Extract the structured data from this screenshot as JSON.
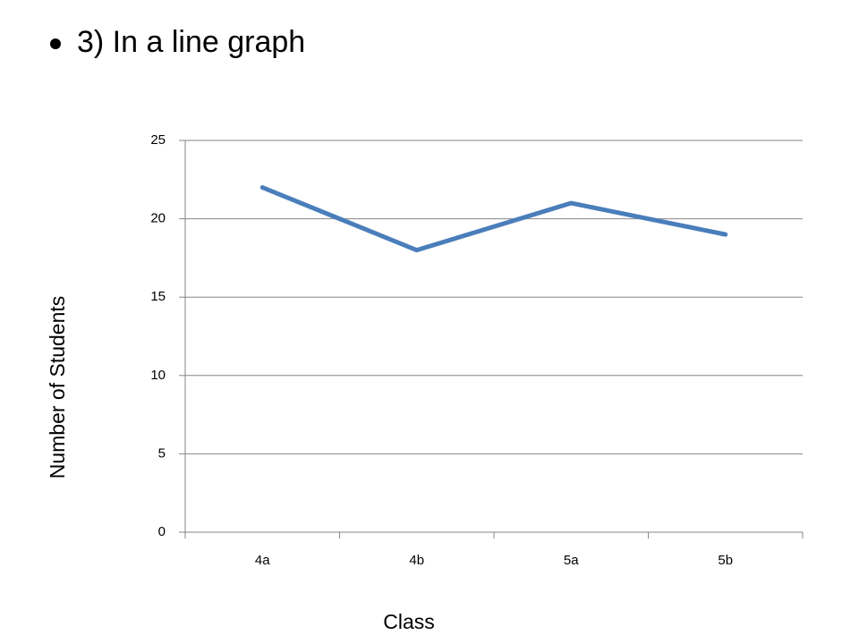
{
  "slide": {
    "bullet": "3) In a line graph"
  },
  "chart_data": {
    "type": "line",
    "x_label": "Class",
    "y_label": "Number of Students",
    "categories": [
      "4a",
      "4b",
      "5a",
      "5b"
    ],
    "series": [
      {
        "name": "Number of Students",
        "color": "#4a7ebb",
        "values": [
          22,
          18,
          21,
          19
        ]
      }
    ],
    "ylim": [
      0,
      25
    ],
    "yticks": [
      0,
      5,
      10,
      15,
      20,
      25
    ],
    "grid": true
  }
}
